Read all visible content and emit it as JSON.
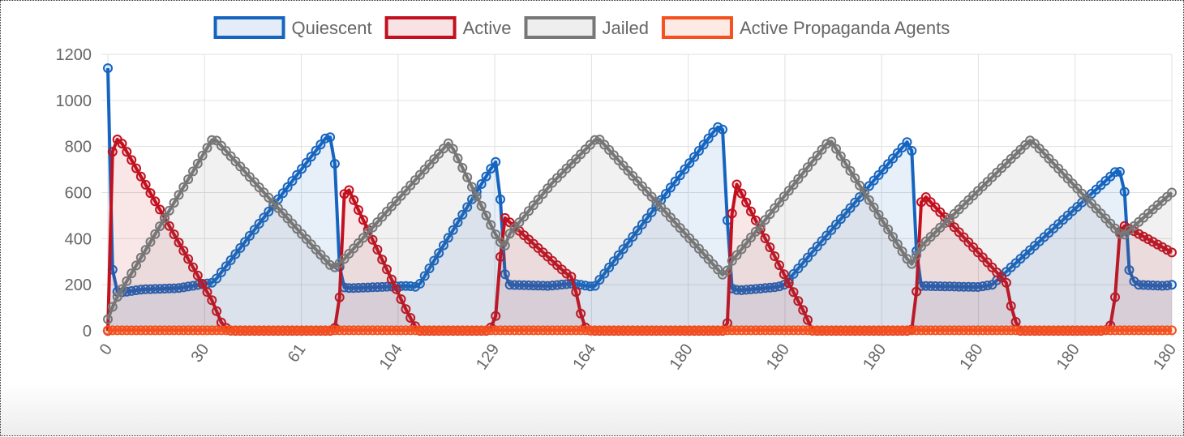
{
  "chart_data": {
    "type": "line",
    "x_tick_labels": [
      "0",
      "30",
      "61",
      "104",
      "129",
      "164",
      "180",
      "180",
      "180",
      "180",
      "180",
      "180"
    ],
    "ylim": [
      0,
      1200
    ],
    "y_ticks": [
      0,
      200,
      400,
      600,
      800,
      1000,
      1200
    ],
    "grid": true,
    "legend_position": "top",
    "colors": {
      "Quiescent": "#1565c0",
      "Active": "#c2101f",
      "Jailed": "#777777",
      "Active Propaganda Agents": "#f4511e"
    },
    "num_points": 226,
    "series": [
      {
        "name": "Quiescent",
        "keypoints": [
          [
            0,
            1140
          ],
          [
            1,
            310
          ],
          [
            2,
            180
          ],
          [
            3,
            165
          ],
          [
            10,
            180
          ],
          [
            20,
            185
          ],
          [
            30,
            210
          ],
          [
            62,
            840
          ],
          [
            64,
            840
          ],
          [
            65,
            570
          ],
          [
            66,
            190
          ],
          [
            69,
            185
          ],
          [
            85,
            195
          ],
          [
            88,
            190
          ],
          [
            110,
            735
          ],
          [
            111,
            700
          ],
          [
            112,
            380
          ],
          [
            113,
            200
          ],
          [
            125,
            195
          ],
          [
            132,
            205
          ],
          [
            138,
            190
          ],
          [
            173,
            885
          ],
          [
            175,
            870
          ],
          [
            176,
            400
          ],
          [
            177,
            185
          ],
          [
            179,
            175
          ],
          [
            190,
            190
          ],
          [
            192,
            200
          ],
          [
            228,
            840
          ],
          [
            229,
            510
          ],
          [
            230,
            195
          ],
          [
            247,
            190
          ],
          [
            251,
            200
          ],
          [
            286,
            690
          ],
          [
            288,
            690
          ],
          [
            289,
            540
          ],
          [
            290,
            240
          ],
          [
            292,
            200
          ],
          [
            300,
            195
          ],
          [
            302,
            200
          ]
        ]
      },
      {
        "name": "Active",
        "keypoints": [
          [
            0,
            0
          ],
          [
            1,
            760
          ],
          [
            2,
            810
          ],
          [
            3,
            840
          ],
          [
            30,
            120
          ],
          [
            32,
            40
          ],
          [
            34,
            5
          ],
          [
            35,
            0
          ],
          [
            64,
            0
          ],
          [
            65,
            30
          ],
          [
            66,
            180
          ],
          [
            67,
            590
          ],
          [
            68,
            625
          ],
          [
            85,
            80
          ],
          [
            88,
            0
          ],
          [
            108,
            0
          ],
          [
            109,
            20
          ],
          [
            110,
            55
          ],
          [
            111,
            200
          ],
          [
            112,
            500
          ],
          [
            130,
            250
          ],
          [
            132,
            230
          ],
          [
            134,
            90
          ],
          [
            135,
            20
          ],
          [
            137,
            0
          ],
          [
            175,
            0
          ],
          [
            176,
            40
          ],
          [
            177,
            480
          ],
          [
            178,
            650
          ],
          [
            198,
            70
          ],
          [
            200,
            0
          ],
          [
            228,
            0
          ],
          [
            229,
            30
          ],
          [
            230,
            300
          ],
          [
            231,
            600
          ],
          [
            255,
            210
          ],
          [
            257,
            60
          ],
          [
            259,
            0
          ],
          [
            283,
            0
          ],
          [
            285,
            30
          ],
          [
            286,
            160
          ],
          [
            287,
            420
          ],
          [
            288,
            460
          ],
          [
            302,
            340
          ]
        ]
      },
      {
        "name": "Jailed",
        "keypoints": [
          [
            0,
            50
          ],
          [
            2,
            130
          ],
          [
            30,
            840
          ],
          [
            64,
            270
          ],
          [
            67,
            310
          ],
          [
            97,
            820
          ],
          [
            110,
            420
          ],
          [
            112,
            370
          ],
          [
            113,
            370
          ],
          [
            114,
            420
          ],
          [
            126,
            640
          ],
          [
            139,
            840
          ],
          [
            175,
            235
          ],
          [
            177,
            300
          ],
          [
            205,
            830
          ],
          [
            228,
            285
          ],
          [
            231,
            370
          ],
          [
            262,
            830
          ],
          [
            288,
            410
          ],
          [
            302,
            600
          ]
        ]
      },
      {
        "name": "Active Propaganda Agents",
        "keypoints": [
          [
            0,
            2
          ],
          [
            302,
            2
          ]
        ]
      }
    ]
  }
}
